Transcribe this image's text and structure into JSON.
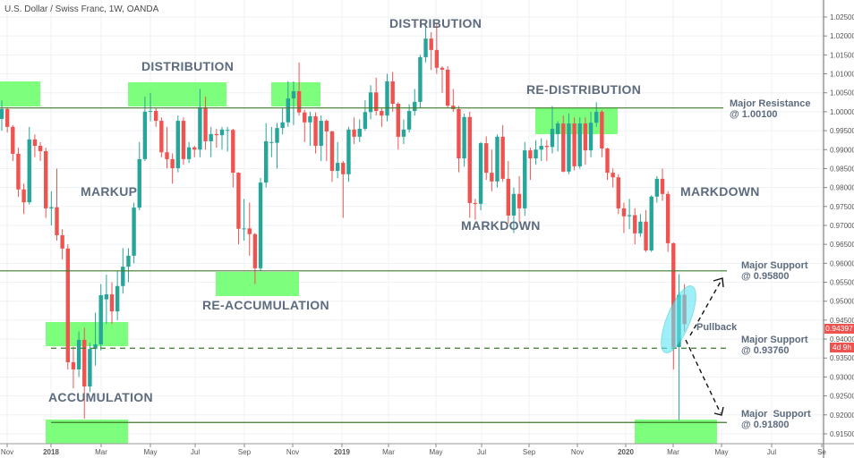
{
  "header": {
    "title": "U.S. Dollar / Swiss Franc, 1W, OANDA"
  },
  "price_tag": {
    "value": "0.94397",
    "countdown": "4d 9h"
  },
  "colors": {
    "up": "#26a69a",
    "down": "#ef5350",
    "zone": "#66ff66",
    "level_line": "#3f7a2a",
    "ellipse": "#5ee6f5",
    "text": "#5d6b7e"
  },
  "annotations": {
    "phases": [
      "DISTRIBUTION",
      "MARKUP",
      "RE-ACCUMULATION",
      "ACCUMULATION",
      "DISTRIBUTION",
      "RE-DISTRIBUTION",
      "MARKDOWN",
      "MARKDOWN"
    ],
    "pullback": "Pullback",
    "levels": [
      {
        "name": "Major Resistance",
        "value_label": "@ 1.00100",
        "value": 1.001,
        "style": "solid"
      },
      {
        "name": "Major Support",
        "value_label": "@ 0.95800",
        "value": 0.958,
        "style": "solid"
      },
      {
        "name": "Major Support",
        "value_label": "@ 0.93760",
        "value": 0.9376,
        "style": "dashed"
      },
      {
        "name": "Major  Support",
        "value_label": "@ 0.91800",
        "value": 0.918,
        "style": "solid"
      }
    ]
  },
  "chart_data": {
    "type": "candlestick",
    "title": "U.S. Dollar / Swiss Franc, 1W, OANDA",
    "interval": "1W",
    "ylim": [
      0.9125,
      1.0275
    ],
    "y_ticks": [
      "1.02500",
      "1.02000",
      "1.01500",
      "1.01000",
      "1.00500",
      "1.00000",
      "0.99500",
      "0.99000",
      "0.98500",
      "0.98000",
      "0.97500",
      "0.97000",
      "0.96500",
      "0.96000",
      "0.95500",
      "0.95000",
      "0.94500",
      "0.94000",
      "0.93500",
      "0.93000",
      "0.92500",
      "0.92000",
      "0.91500"
    ],
    "x_ticks": [
      "Nov",
      "2018",
      "Mar",
      "May",
      "Jul",
      "Sep",
      "Nov",
      "2019",
      "Mar",
      "May",
      "Jul",
      "Sep",
      "Nov",
      "2020",
      "Mar",
      "May",
      "Jul",
      "Se"
    ],
    "grid": true,
    "ohlc": [
      [
        0.9981,
        1.003,
        0.995,
        1.0007
      ],
      [
        1.0007,
        1.0012,
        0.9945,
        0.996
      ],
      [
        0.996,
        0.9965,
        0.987,
        0.9889
      ],
      [
        0.9889,
        0.9905,
        0.9775,
        0.9795
      ],
      [
        0.9795,
        0.981,
        0.973,
        0.9761
      ],
      [
        0.9761,
        0.996,
        0.9755,
        0.9927
      ],
      [
        0.9927,
        0.994,
        0.988,
        0.991
      ],
      [
        0.991,
        0.992,
        0.987,
        0.9896
      ],
      [
        0.9896,
        0.9905,
        0.972,
        0.9745
      ],
      [
        0.9745,
        0.979,
        0.97,
        0.9748
      ],
      [
        0.9748,
        0.985,
        0.966,
        0.9674
      ],
      [
        0.9674,
        0.969,
        0.961,
        0.9639
      ],
      [
        0.9639,
        0.965,
        0.932,
        0.9339
      ],
      [
        0.9339,
        0.938,
        0.927,
        0.932
      ],
      [
        0.932,
        0.942,
        0.93,
        0.9398
      ],
      [
        0.9398,
        0.943,
        0.919,
        0.9275
      ],
      [
        0.9275,
        0.939,
        0.926,
        0.9374
      ],
      [
        0.9374,
        0.947,
        0.933,
        0.9386
      ],
      [
        0.9386,
        0.9545,
        0.937,
        0.9516
      ],
      [
        0.9505,
        0.957,
        0.944,
        0.9518
      ],
      [
        0.9518,
        0.955,
        0.944,
        0.9473
      ],
      [
        0.9473,
        0.958,
        0.945,
        0.954
      ],
      [
        0.954,
        0.964,
        0.952,
        0.9591
      ],
      [
        0.9591,
        0.964,
        0.955,
        0.962
      ],
      [
        0.962,
        0.976,
        0.96,
        0.9747
      ],
      [
        0.9747,
        0.992,
        0.974,
        0.9875
      ],
      [
        0.9875,
        1.004,
        0.987,
        1.0
      ],
      [
        1.0,
        1.005,
        0.9975,
        1.0002
      ],
      [
        1.0002,
        1.001,
        0.996,
        0.9976
      ],
      [
        0.9976,
        0.9985,
        0.988,
        0.9893
      ],
      [
        0.9893,
        0.996,
        0.985,
        0.9875
      ],
      [
        0.9875,
        0.989,
        0.981,
        0.9851
      ],
      [
        0.9851,
        0.999,
        0.984,
        0.9976
      ],
      [
        0.9976,
        0.9985,
        0.986,
        0.9875
      ],
      [
        0.9875,
        0.992,
        0.9865,
        0.9906
      ],
      [
        0.9906,
        0.991,
        0.988,
        0.99
      ],
      [
        0.99,
        1.006,
        0.988,
        1.0012
      ],
      [
        1.0012,
        1.004,
        0.99,
        0.9922
      ],
      [
        0.9922,
        0.996,
        0.988,
        0.9941
      ],
      [
        0.9941,
        0.9955,
        0.9905,
        0.9938
      ],
      [
        0.9938,
        0.996,
        0.99,
        0.9953
      ],
      [
        0.995,
        0.996,
        0.9895,
        0.9952
      ],
      [
        0.9952,
        0.9955,
        0.98,
        0.9839
      ],
      [
        0.9839,
        0.984,
        0.965,
        0.9691
      ],
      [
        0.969,
        0.977,
        0.966,
        0.9692
      ],
      [
        0.9692,
        0.976,
        0.962,
        0.9677
      ],
      [
        0.9677,
        0.968,
        0.9545,
        0.9587
      ],
      [
        0.9587,
        0.9825,
        0.958,
        0.9813
      ],
      [
        0.9813,
        0.997,
        0.98,
        0.9922
      ],
      [
        0.9918,
        0.996,
        0.988,
        0.992
      ],
      [
        0.9918,
        0.997,
        0.985,
        0.9957
      ],
      [
        0.9957,
        1.001,
        0.994,
        0.9972
      ],
      [
        0.9972,
        1.008,
        0.996,
        1.0035
      ],
      [
        1.0035,
        1.008,
        0.9965,
        1.0054
      ],
      [
        1.0054,
        1.013,
        0.999,
        0.9998
      ],
      [
        0.9998,
        1.0005,
        0.992,
        0.9972
      ],
      [
        0.9972,
        1.0,
        0.991,
        0.9988
      ],
      [
        0.9988,
        0.9998,
        0.989,
        0.991
      ],
      [
        0.991,
        0.999,
        0.987,
        0.9976
      ],
      [
        0.9976,
        0.998,
        0.987,
        0.9948
      ],
      [
        0.9948,
        0.995,
        0.9815,
        0.9844
      ],
      [
        0.9844,
        0.992,
        0.9825,
        0.9865
      ],
      [
        0.9865,
        0.987,
        0.972,
        0.9835
      ],
      [
        0.9835,
        0.996,
        0.9815,
        0.9953
      ],
      [
        0.9953,
        0.9985,
        0.9915,
        0.9934
      ],
      [
        0.9934,
        0.998,
        0.992,
        0.9955
      ],
      [
        0.9955,
        1.003,
        0.995,
        0.9999
      ],
      [
        0.9999,
        1.007,
        0.998,
        1.0051
      ],
      [
        1.0051,
        1.009,
        0.999,
        1.0002
      ],
      [
        1.0002,
        1.001,
        0.996,
        0.999
      ],
      [
        0.999,
        1.01,
        0.9975,
        1.008
      ],
      [
        1.008,
        1.0105,
        1.0,
        1.0021
      ],
      [
        1.0021,
        1.0025,
        0.99,
        0.9934
      ],
      [
        0.9934,
        0.998,
        0.9915,
        0.9953
      ],
      [
        0.9953,
        1.002,
        0.9945,
        1.0002
      ],
      [
        1.0002,
        1.006,
        0.999,
        1.0026
      ],
      [
        1.0026,
        1.015,
        1.001,
        1.0144
      ],
      [
        1.0144,
        1.0235,
        1.013,
        1.0193
      ],
      [
        1.0193,
        1.021,
        1.011,
        1.0163
      ],
      [
        1.0163,
        1.0235,
        1.01,
        1.0116
      ],
      [
        1.0116,
        1.012,
        1.005,
        1.0111
      ],
      [
        1.0111,
        1.012,
        1.001,
        1.0016
      ],
      [
        1.0016,
        1.006,
        1.0,
        1.0007
      ],
      [
        1.0007,
        1.0015,
        0.984,
        0.9877
      ],
      [
        0.9877,
        0.9995,
        0.9855,
        0.9986
      ],
      [
        0.9986,
        1.0,
        0.972,
        0.9759
      ],
      [
        0.9759,
        0.977,
        0.9715,
        0.9757
      ],
      [
        0.9757,
        0.992,
        0.974,
        0.9917
      ],
      [
        0.9917,
        0.9935,
        0.982,
        0.9839
      ],
      [
        0.9839,
        0.99,
        0.979,
        0.9816
      ],
      [
        0.9816,
        0.994,
        0.98,
        0.9934
      ],
      [
        0.9934,
        0.9965,
        0.9815,
        0.9823
      ],
      [
        0.9823,
        0.987,
        0.9705,
        0.9726
      ],
      [
        0.9726,
        0.98,
        0.968,
        0.9783
      ],
      [
        0.9783,
        0.983,
        0.971,
        0.9745
      ],
      [
        0.9745,
        0.992,
        0.9725,
        0.9898
      ],
      [
        0.9898,
        0.9905,
        0.982,
        0.9877
      ],
      [
        0.9877,
        0.9925,
        0.986,
        0.99
      ],
      [
        0.99,
        0.993,
        0.987,
        0.991
      ],
      [
        0.991,
        0.9925,
        0.987,
        0.9907
      ],
      [
        0.9907,
        1.0015,
        0.989,
        0.9955
      ],
      [
        0.9941,
        0.9975,
        0.9895,
        0.9969
      ],
      [
        0.9969,
        0.999,
        0.984,
        0.9842
      ],
      [
        0.9842,
        0.9995,
        0.9835,
        0.9969
      ],
      [
        0.9969,
        0.9985,
        0.9845,
        0.9856
      ],
      [
        0.9856,
        0.9985,
        0.985,
        0.9969
      ],
      [
        0.9969,
        0.9985,
        0.986,
        0.9898
      ],
      [
        0.9898,
        1.0,
        0.988,
        0.9971
      ],
      [
        0.9971,
        1.0025,
        0.996,
        1.0
      ],
      [
        1.0,
        1.0005,
        0.988,
        0.9903
      ],
      [
        0.9903,
        0.9905,
        0.982,
        0.9839
      ],
      [
        0.9839,
        0.985,
        0.98,
        0.9827
      ],
      [
        0.9827,
        0.9835,
        0.973,
        0.9745
      ],
      [
        0.9745,
        0.976,
        0.968,
        0.9724
      ],
      [
        0.9724,
        0.977,
        0.969,
        0.9727
      ],
      [
        0.9727,
        0.9745,
        0.965,
        0.9679
      ],
      [
        0.9679,
        0.973,
        0.967,
        0.971
      ],
      [
        0.971,
        0.974,
        0.963,
        0.9634
      ],
      [
        0.9634,
        0.978,
        0.963,
        0.9776
      ],
      [
        0.9776,
        0.983,
        0.976,
        0.9823
      ],
      [
        0.9823,
        0.985,
        0.9765,
        0.9783
      ],
      [
        0.9783,
        0.979,
        0.963,
        0.9653
      ],
      [
        0.9653,
        0.9655,
        0.932,
        0.9379
      ],
      [
        0.9379,
        0.9571,
        0.9186,
        0.9517
      ],
      [
        0.9517,
        0.9545,
        0.942,
        0.94397
      ]
    ]
  }
}
